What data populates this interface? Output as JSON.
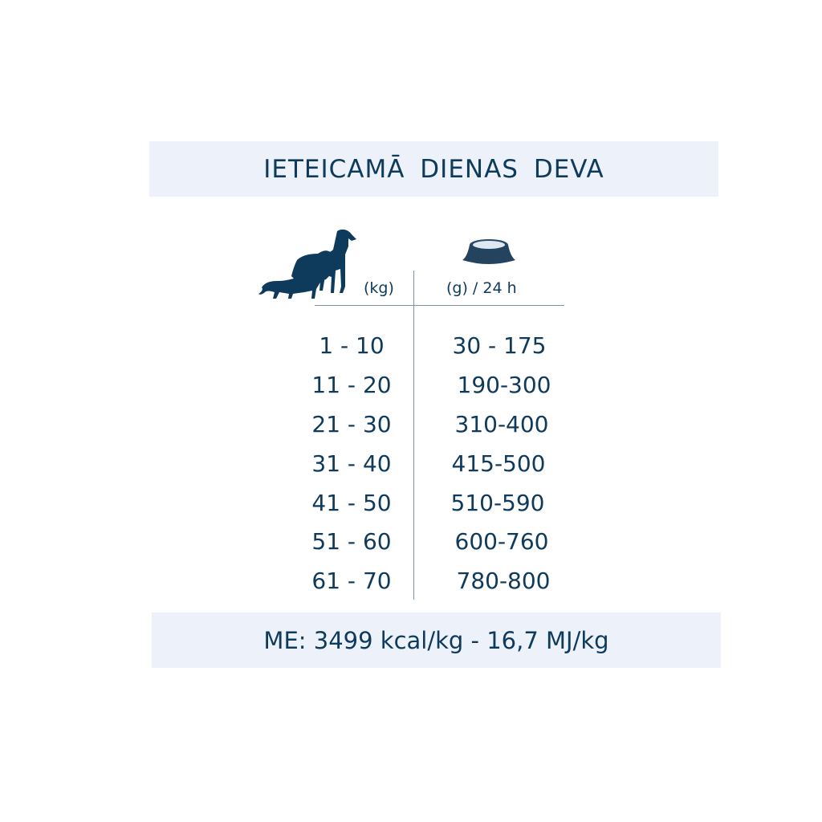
{
  "title": "IETEICAMĀ  DIENAS  DEVA",
  "header": {
    "weight_unit": "(kg)",
    "food_unit": "(g) / 24 h",
    "weight_icon": "dogs-icon",
    "food_icon": "food-bowl-icon"
  },
  "rows": [
    {
      "weight": "1 - 10",
      "grams": "30 - 175"
    },
    {
      "weight": "11 - 20",
      "grams": "190-300"
    },
    {
      "weight": "21 - 30",
      "grams": "310-400"
    },
    {
      "weight": "31 - 40",
      "grams": "415-500"
    },
    {
      "weight": "41 - 50",
      "grams": "510-590"
    },
    {
      "weight": "51 - 60",
      "grams": "600-760"
    },
    {
      "weight": "61 - 70",
      "grams": "780-800"
    }
  ],
  "footer": "ME: 3499 kcal/kg - 16,7 MJ/kg",
  "colors": {
    "text": "#0e3a5c",
    "band": "#edf2fa"
  }
}
